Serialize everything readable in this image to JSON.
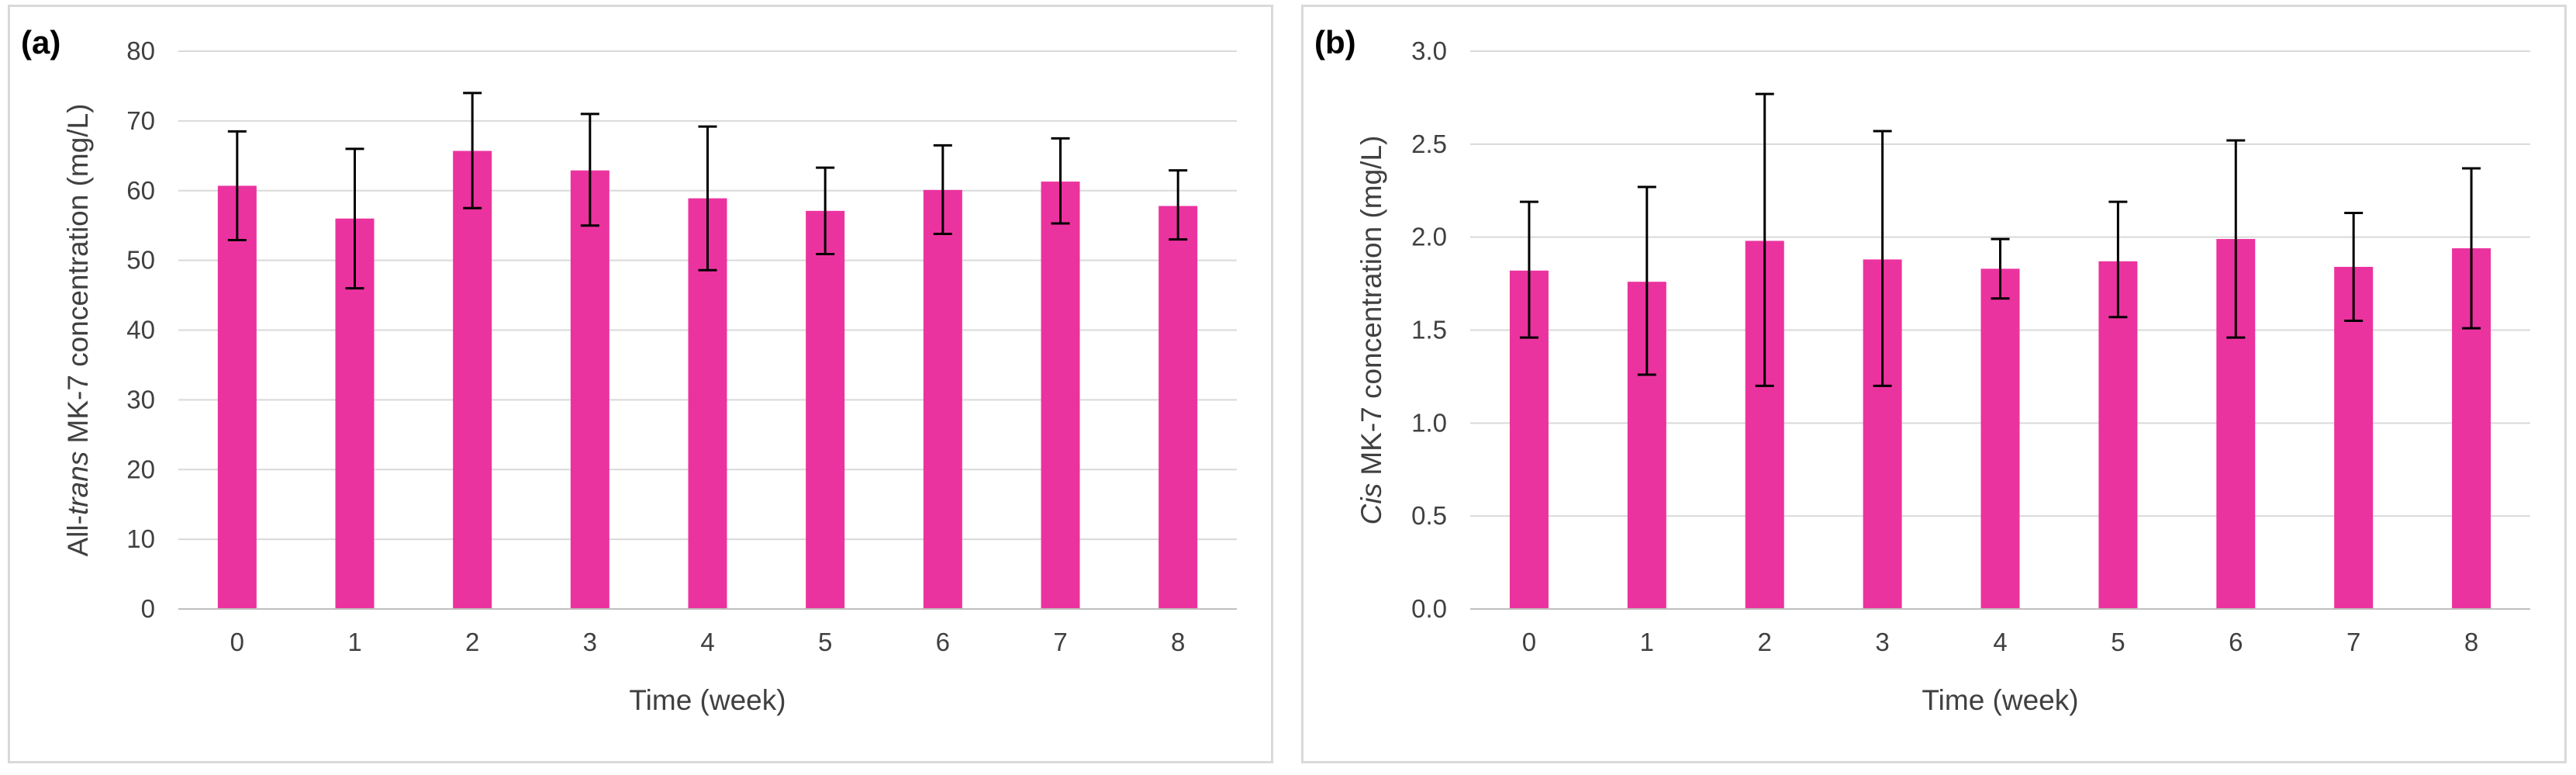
{
  "colors": {
    "bar": "#eb339f",
    "grid": "#d9d9d9",
    "axis": "#bfbfbf",
    "error": "#000000",
    "text": "#404040"
  },
  "chart_data": [
    {
      "panel_label": "(a)",
      "type": "bar",
      "categories": [
        "0",
        "1",
        "2",
        "3",
        "4",
        "5",
        "6",
        "7",
        "8"
      ],
      "values": [
        60.7,
        56.0,
        65.7,
        62.9,
        58.9,
        57.1,
        60.1,
        61.3,
        57.8
      ],
      "error_upper": [
        68.5,
        66.0,
        74.0,
        71.0,
        69.2,
        63.3,
        66.5,
        67.5,
        62.9
      ],
      "error_lower": [
        52.9,
        46.0,
        57.5,
        55.0,
        48.6,
        50.9,
        53.8,
        55.3,
        53.0
      ],
      "xlabel": "Time (week)",
      "ylabel_parts": [
        "All-",
        "trans",
        " MK-7 concentration (mg/L)"
      ],
      "ylim": [
        0,
        80
      ],
      "yticks": [
        "0",
        "10",
        "20",
        "30",
        "40",
        "50",
        "60",
        "70",
        "80"
      ]
    },
    {
      "panel_label": "(b)",
      "type": "bar",
      "categories": [
        "0",
        "1",
        "2",
        "3",
        "4",
        "5",
        "6",
        "7",
        "8"
      ],
      "values": [
        1.82,
        1.76,
        1.98,
        1.88,
        1.83,
        1.87,
        1.99,
        1.84,
        1.94
      ],
      "error_upper": [
        2.19,
        2.27,
        2.77,
        2.57,
        1.99,
        2.19,
        2.52,
        2.13,
        2.37
      ],
      "error_lower": [
        1.46,
        1.26,
        1.2,
        1.2,
        1.67,
        1.57,
        1.46,
        1.55,
        1.51
      ],
      "xlabel": "Time (week)",
      "ylabel_parts": [
        "",
        "Cis",
        " MK-7 concentration (mg/L)"
      ],
      "ylim": [
        0,
        3.0
      ],
      "yticks": [
        "0.0",
        "0.5",
        "1.0",
        "1.5",
        "2.0",
        "2.5",
        "3.0"
      ]
    }
  ]
}
